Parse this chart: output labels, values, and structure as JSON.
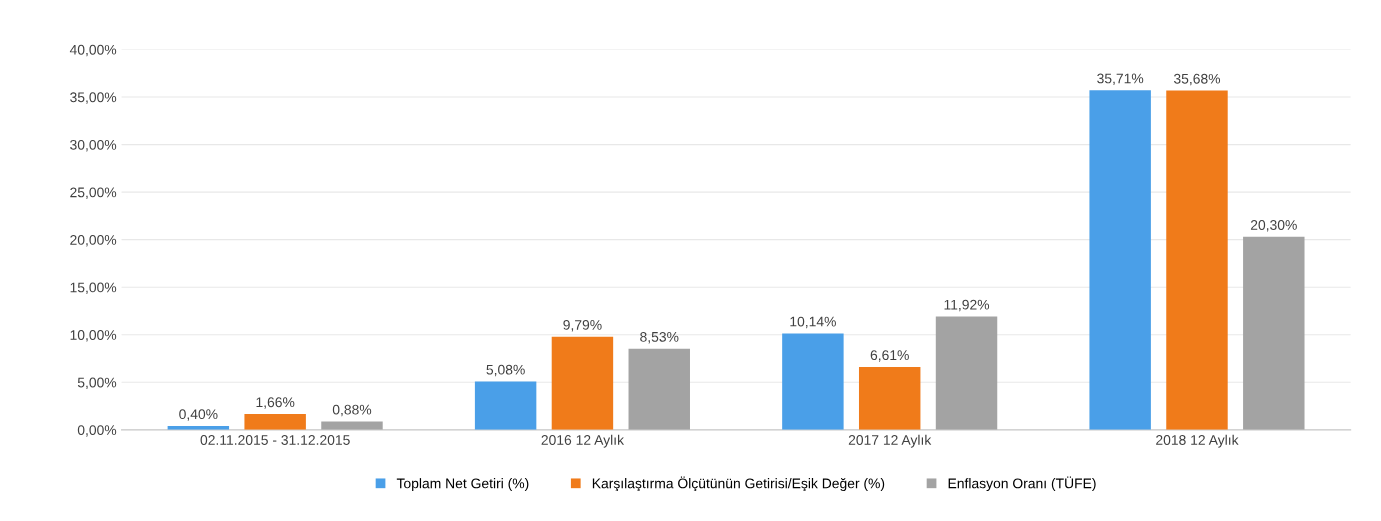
{
  "chart_data": {
    "type": "bar",
    "categories": [
      "02.11.2015 - 31.12.2015",
      "2016 12 Aylık",
      "2017 12 Aylık",
      "2018 12 Aylık"
    ],
    "series": [
      {
        "name": "Toplam Net Getiri (%)",
        "color": "#4a9fe8",
        "values": [
          0.4,
          5.08,
          10.14,
          35.71
        ],
        "value_labels": [
          "0,40%",
          "5,08%",
          "10,14%",
          "35,71%"
        ]
      },
      {
        "name": "Karşılaştırma Ölçütünün Getirisi/Eşik Değer (%)",
        "color": "#f07b1a",
        "values": [
          1.66,
          9.79,
          6.61,
          35.68
        ],
        "value_labels": [
          "1,66%",
          "9,79%",
          "6,61%",
          "35,68%"
        ]
      },
      {
        "name": "Enflasyon Oranı (TÜFE)",
        "color": "#a3a3a3",
        "values": [
          0.88,
          8.53,
          11.92,
          20.3
        ],
        "value_labels": [
          "0,88%",
          "8,53%",
          "11,92%",
          "20,30%"
        ]
      }
    ],
    "ylim": [
      0,
      40
    ],
    "yticks": [
      {
        "value": 0,
        "label": "0,00%"
      },
      {
        "value": 5,
        "label": "5,00%"
      },
      {
        "value": 10,
        "label": "10,00%"
      },
      {
        "value": 15,
        "label": "15,00%"
      },
      {
        "value": 20,
        "label": "20,00%"
      },
      {
        "value": 25,
        "label": "25,00%"
      },
      {
        "value": 30,
        "label": "30,00%"
      },
      {
        "value": 35,
        "label": "35,00%"
      },
      {
        "value": 40,
        "label": "40,00%"
      }
    ],
    "grid": "y",
    "legend": "bottom"
  }
}
